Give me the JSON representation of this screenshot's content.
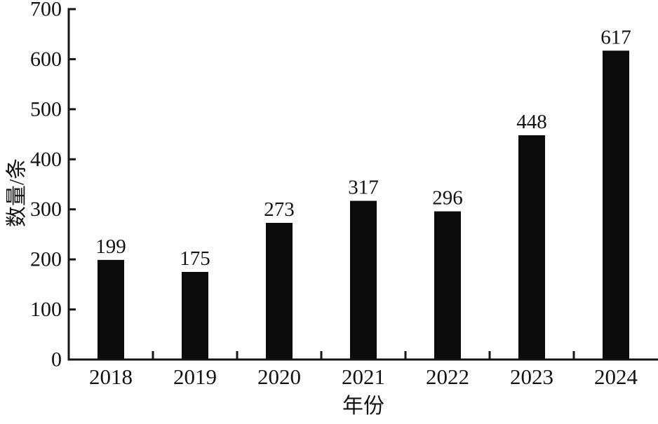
{
  "figure": {
    "background": "#ffffff",
    "bar_color": "#0b0b0b",
    "axis_color": "#161616",
    "text_color": "#121212"
  },
  "chart_data": {
    "type": "bar",
    "title": "",
    "categories": [
      "2018",
      "2019",
      "2020",
      "2021",
      "2022",
      "2023",
      "2024"
    ],
    "values": [
      199,
      175,
      273,
      317,
      296,
      448,
      617
    ],
    "xlabel": "年份",
    "ylabel": "数量/条",
    "ylim": [
      0,
      700
    ],
    "yticks": [
      0,
      100,
      200,
      300,
      400,
      500,
      600,
      700
    ],
    "grid": false,
    "legend": null,
    "value_labels_shown": true,
    "bar_color": "#0b0b0b"
  }
}
